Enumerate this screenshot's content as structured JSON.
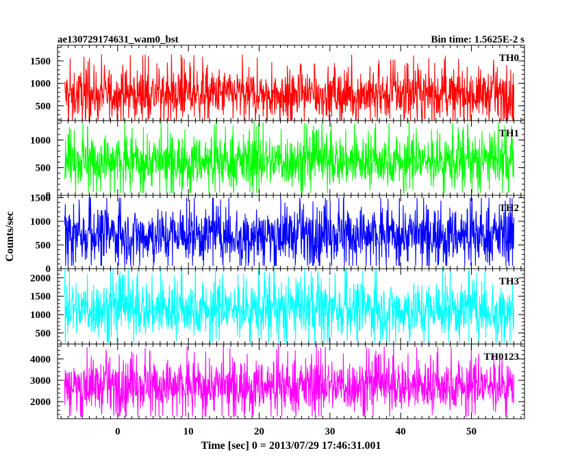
{
  "chart_data": {
    "type": "line",
    "title_left": "ae130729174631_wam0_bst",
    "title_right": "Bin time: 1.5625E-2 s",
    "xlabel": "Time [sec] 0 = 2013/07/29 17:46:31.001",
    "ylabel": "Counts/sec",
    "xlim": [
      -8.5,
      57.5
    ],
    "x_ticks": [
      0,
      10,
      20,
      30,
      40,
      50
    ],
    "x_minor_step": 1,
    "data_x_range": [
      -7.5,
      56.0
    ],
    "bin_time_sec": 0.015625,
    "grid": false,
    "legend": "none",
    "panels": [
      {
        "name": "TH0",
        "color": "#ff0000",
        "ylim": [
          170,
          1850
        ],
        "y_ticks": [
          500,
          1000,
          1500
        ],
        "y_minor_step": 100,
        "mean": 760,
        "sd": 270,
        "min": 100,
        "max": 1850
      },
      {
        "name": "TH1",
        "color": "#00ff00",
        "ylim": [
          0,
          1350
        ],
        "y_ticks": [
          0,
          500,
          1000
        ],
        "y_minor_step": 100,
        "mean": 620,
        "sd": 230,
        "min": 40,
        "max": 1350
      },
      {
        "name": "TH2",
        "color": "#0000ff",
        "ylim": [
          0,
          1550
        ],
        "y_ticks": [
          0,
          500,
          1000,
          1500
        ],
        "y_minor_step": 100,
        "mean": 720,
        "sd": 290,
        "min": 60,
        "max": 1500
      },
      {
        "name": "TH3",
        "color": "#00ffff",
        "ylim": [
          200,
          2250
        ],
        "y_ticks": [
          500,
          1000,
          1500,
          2000
        ],
        "y_minor_step": 100,
        "mean": 1150,
        "sd": 380,
        "min": 230,
        "max": 2250
      },
      {
        "name": "TH0123",
        "color": "#ff00ff",
        "ylim": [
          1200,
          4700
        ],
        "y_ticks": [
          2000,
          3000,
          4000
        ],
        "y_minor_step": 200,
        "mean": 2750,
        "sd": 600,
        "min": 1300,
        "max": 4700
      }
    ]
  }
}
